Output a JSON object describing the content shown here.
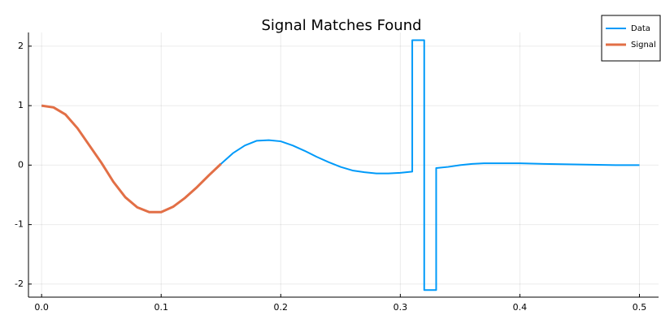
{
  "chart_data": {
    "type": "line",
    "title": "Signal Matches Found",
    "series": [
      {
        "name": "Data",
        "color": "#009af9",
        "x": [
          0,
          0.01,
          0.02,
          0.03,
          0.04,
          0.05,
          0.06,
          0.07,
          0.08,
          0.09,
          0.1,
          0.11,
          0.12,
          0.13,
          0.14,
          0.15,
          0.16,
          0.17,
          0.18,
          0.19,
          0.2,
          0.21,
          0.22,
          0.23,
          0.24,
          0.25,
          0.26,
          0.27,
          0.28,
          0.29,
          0.3,
          0.31,
          0.31,
          0.32,
          0.32,
          0.33,
          0.33,
          0.34,
          0.35,
          0.36,
          0.37,
          0.38,
          0.4,
          0.42,
          0.45,
          0.48,
          0.5
        ],
        "values": [
          1.0,
          0.97,
          0.85,
          0.62,
          0.33,
          0.04,
          -0.28,
          -0.54,
          -0.71,
          -0.79,
          -0.79,
          -0.7,
          -0.55,
          -0.37,
          -0.17,
          0.02,
          0.2,
          0.33,
          0.41,
          0.42,
          0.4,
          0.33,
          0.24,
          0.14,
          0.05,
          -0.03,
          -0.09,
          -0.12,
          -0.14,
          -0.14,
          -0.13,
          -0.11,
          2.1,
          2.1,
          -2.1,
          -2.1,
          -0.05,
          -0.03,
          0.0,
          0.02,
          0.03,
          0.03,
          0.03,
          0.02,
          0.01,
          0.0,
          0.0
        ]
      },
      {
        "name": "Signal",
        "color": "#e26f46",
        "x": [
          0,
          0.01,
          0.02,
          0.03,
          0.04,
          0.05,
          0.06,
          0.07,
          0.08,
          0.09,
          0.1,
          0.11,
          0.12,
          0.13,
          0.14,
          0.15
        ],
        "values": [
          1.0,
          0.97,
          0.85,
          0.62,
          0.33,
          0.04,
          -0.28,
          -0.54,
          -0.71,
          -0.79,
          -0.79,
          -0.7,
          -0.55,
          -0.37,
          -0.17,
          0.02
        ]
      }
    ],
    "xlim": [
      -0.011,
      0.516
    ],
    "ylim": [
      -2.22,
      2.23
    ],
    "xticks": [
      {
        "value": 0,
        "label": "0.0"
      },
      0.1,
      0.2,
      0.3,
      0.4,
      0.5
    ],
    "yticks": [
      -2,
      -1,
      0,
      1,
      2
    ],
    "grid": true,
    "legend": "top-right"
  }
}
